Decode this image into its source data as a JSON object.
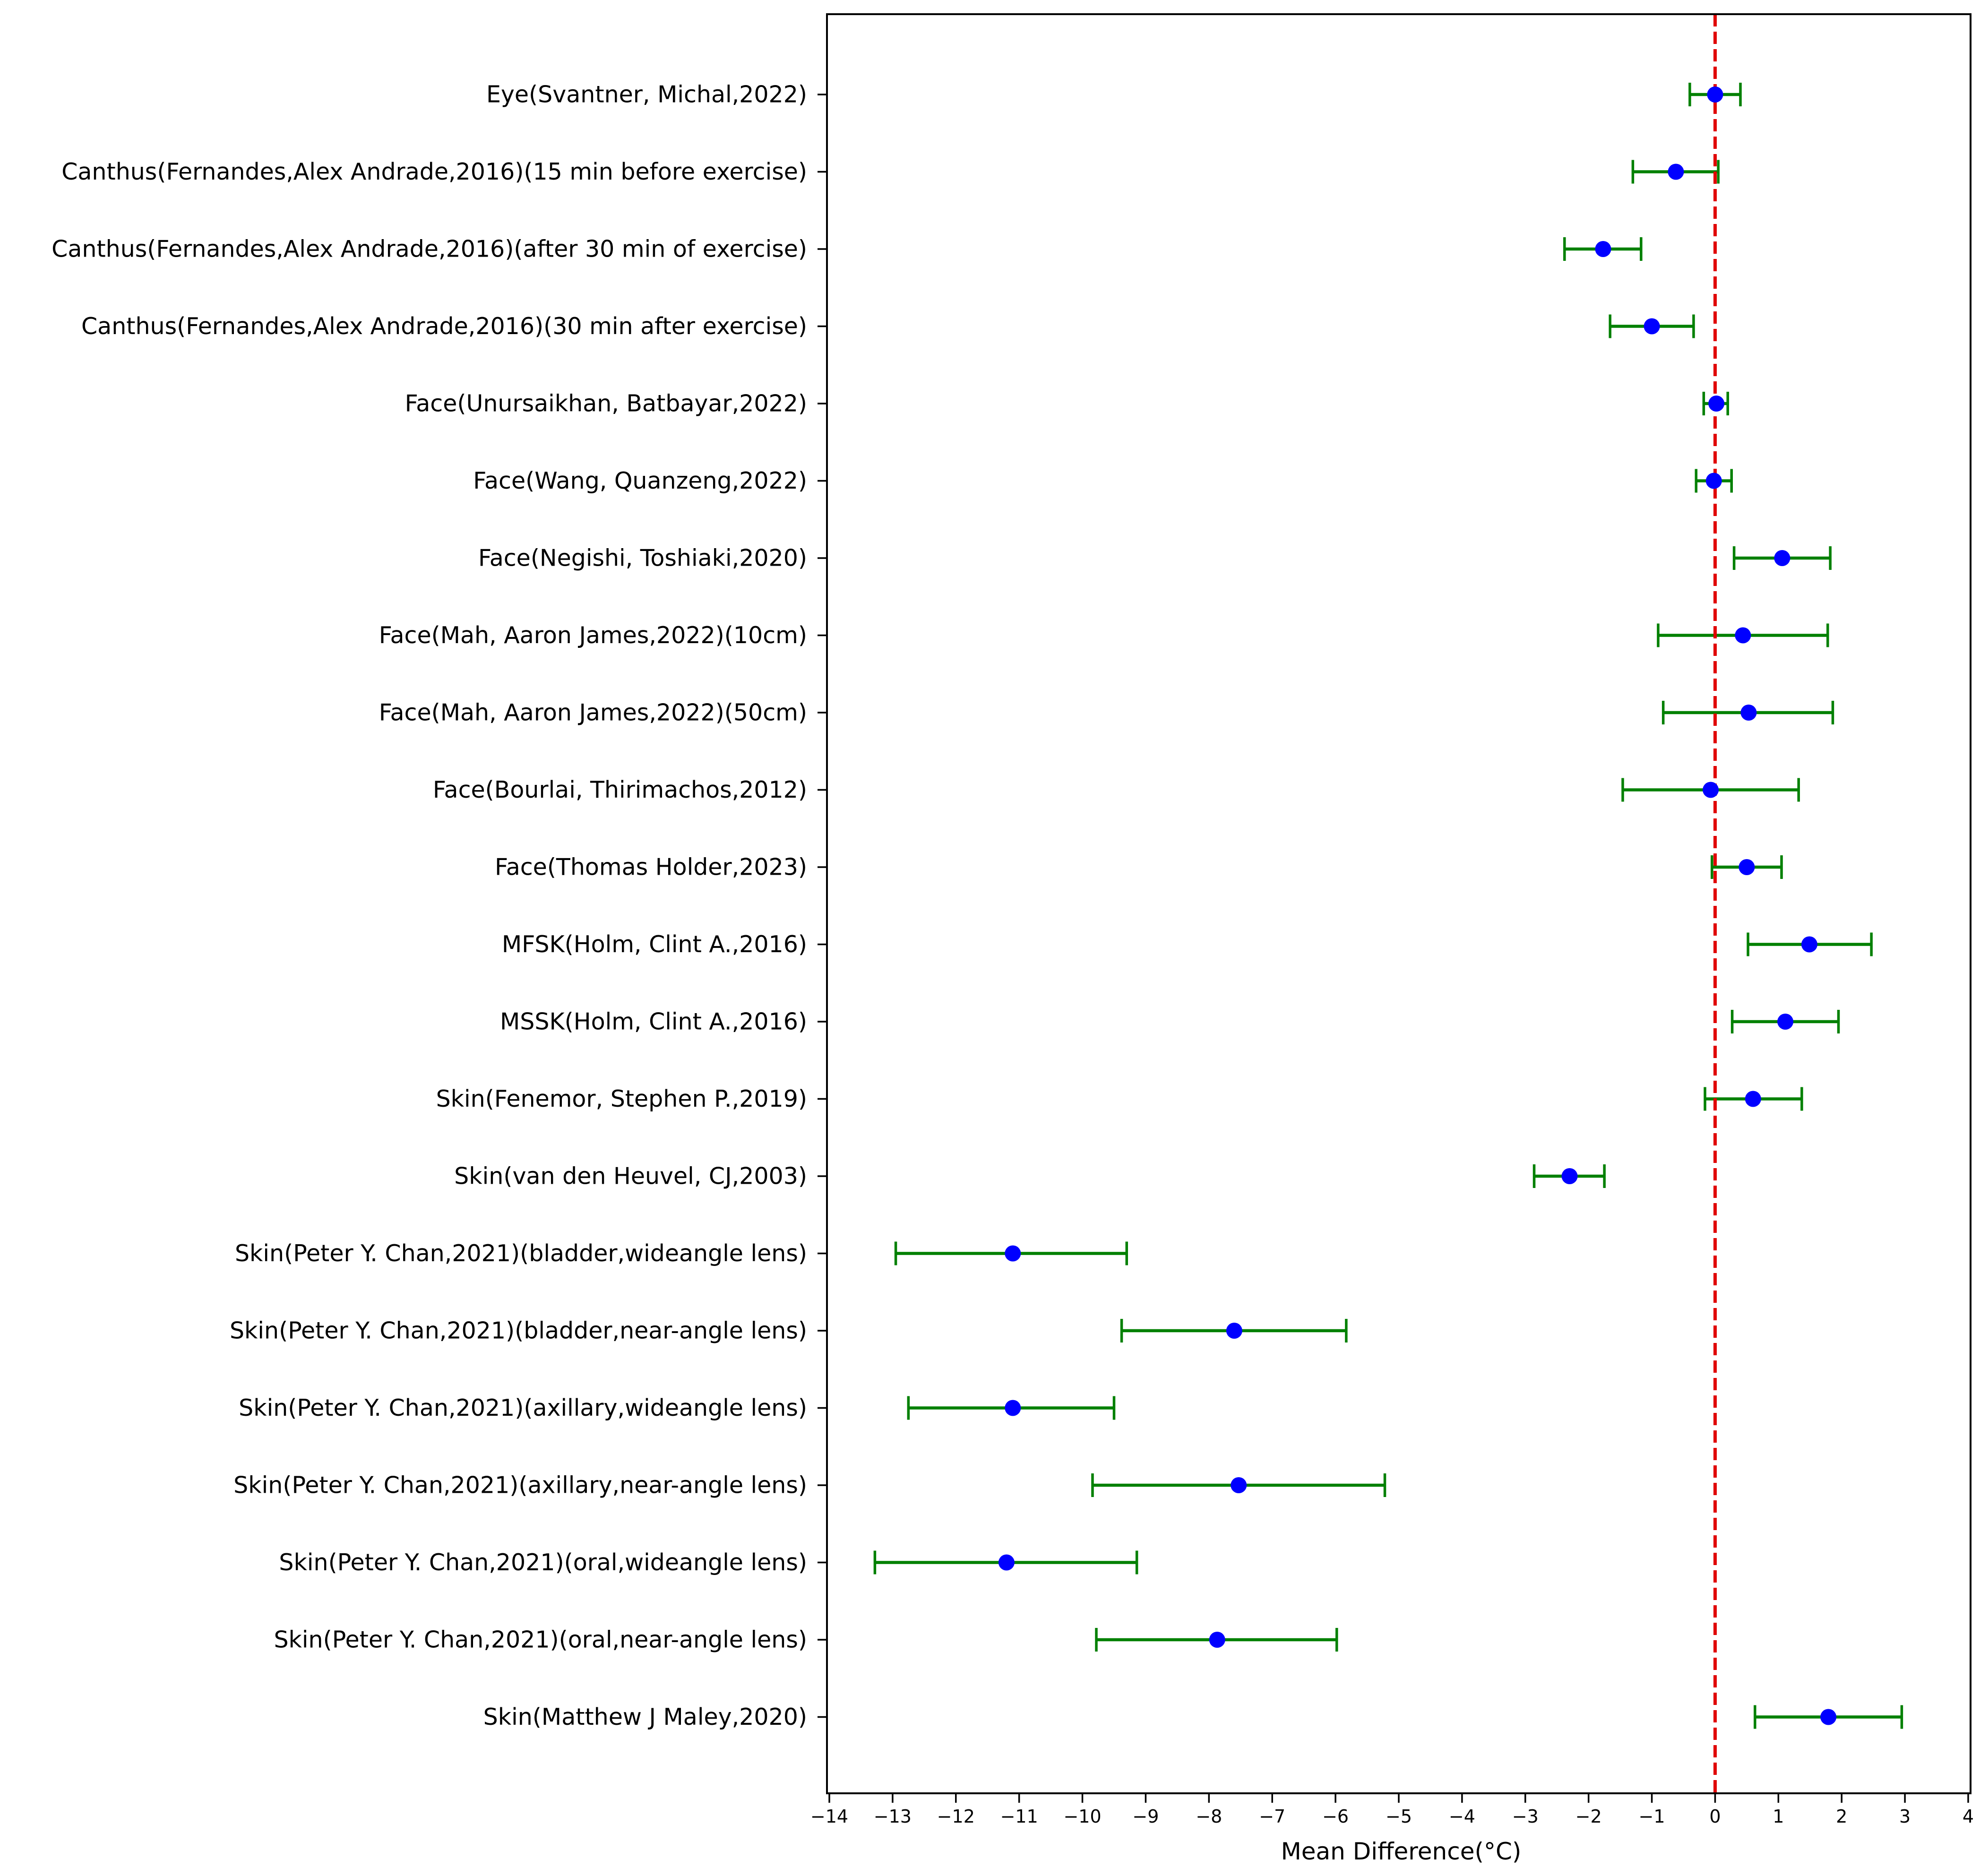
{
  "chart_data": {
    "type": "scatter",
    "subtype": "forest-plot",
    "title": "",
    "xlabel": "Mean Difference(°C)",
    "ylabel": "",
    "xlim": [
      -14,
      4
    ],
    "xticks": [
      -14,
      -13,
      -12,
      -11,
      -10,
      -9,
      -8,
      -7,
      -6,
      -5,
      -4,
      -3,
      -2,
      -1,
      0,
      1,
      2,
      3,
      4
    ],
    "xtick_labels": [
      "−14",
      "−13",
      "−12",
      "−11",
      "−10",
      "−9",
      "−8",
      "−7",
      "−6",
      "−5",
      "−4",
      "−3",
      "−2",
      "−1",
      "0",
      "1",
      "2",
      "3",
      "4"
    ],
    "reference_line": {
      "x": 0,
      "style": "dashed",
      "color": "#e00000"
    },
    "colors": {
      "point": "#0000ff",
      "errorbar": "#008000",
      "reference": "#e00000",
      "axes": "#000000"
    },
    "grid": false,
    "studies": [
      {
        "label": "Eye(Svantner, Michal,2022)",
        "mean": 0.0,
        "lower": -0.4,
        "upper": 0.4
      },
      {
        "label": "Canthus(Fernandes,Alex Andrade,2016)(15 min before exercise)",
        "mean": -0.62,
        "lower": -1.3,
        "upper": 0.05
      },
      {
        "label": "Canthus(Fernandes,Alex Andrade,2016)(after 30 min of exercise)",
        "mean": -1.77,
        "lower": -2.38,
        "upper": -1.17
      },
      {
        "label": "Canthus(Fernandes,Alex Andrade,2016)(30 min after exercise)",
        "mean": -1.0,
        "lower": -1.66,
        "upper": -0.34
      },
      {
        "label": "Face(Unursaikhan, Batbayar,2022)",
        "mean": 0.02,
        "lower": -0.18,
        "upper": 0.2
      },
      {
        "label": "Face(Wang, Quanzeng,2022)",
        "mean": -0.02,
        "lower": -0.3,
        "upper": 0.26
      },
      {
        "label": "Face(Negishi, Toshiaki,2020)",
        "mean": 1.06,
        "lower": 0.3,
        "upper": 1.82
      },
      {
        "label": "Face(Mah, Aaron James,2022)(10cm)",
        "mean": 0.44,
        "lower": -0.9,
        "upper": 1.78
      },
      {
        "label": "Face(Mah, Aaron James,2022)(50cm)",
        "mean": 0.53,
        "lower": -0.82,
        "upper": 1.86
      },
      {
        "label": "Face(Bourlai, Thirimachos,2012)",
        "mean": -0.07,
        "lower": -1.46,
        "upper": 1.32
      },
      {
        "label": "Face(Thomas Holder,2023)",
        "mean": 0.5,
        "lower": -0.05,
        "upper": 1.05
      },
      {
        "label": "MFSK(Holm, Clint A.,2016)",
        "mean": 1.49,
        "lower": 0.52,
        "upper": 2.47
      },
      {
        "label": "MSSK(Holm, Clint A.,2016)",
        "mean": 1.11,
        "lower": 0.27,
        "upper": 1.95
      },
      {
        "label": "Skin(Fenemor, Stephen P.,2019)",
        "mean": 0.6,
        "lower": -0.16,
        "upper": 1.37
      },
      {
        "label": "Skin(van den Heuvel, CJ,2003)",
        "mean": -2.3,
        "lower": -2.86,
        "upper": -1.75
      },
      {
        "label": "Skin(Peter Y. Chan,2021)(bladder,wideangle lens)",
        "mean": -11.1,
        "lower": -12.95,
        "upper": -9.3
      },
      {
        "label": "Skin(Peter Y. Chan,2021)(bladder,near-angle lens)",
        "mean": -7.6,
        "lower": -9.38,
        "upper": -5.83
      },
      {
        "label": "Skin(Peter Y. Chan,2021)(axillary,wideangle lens)",
        "mean": -11.1,
        "lower": -12.75,
        "upper": -9.5
      },
      {
        "label": "Skin(Peter Y. Chan,2021)(axillary,near-angle lens)",
        "mean": -7.53,
        "lower": -9.84,
        "upper": -5.22
      },
      {
        "label": "Skin(Peter Y. Chan,2021)(oral,wideangle lens)",
        "mean": -11.2,
        "lower": -13.28,
        "upper": -9.14
      },
      {
        "label": "Skin(Peter Y. Chan,2021)(oral,near-angle lens)",
        "mean": -7.87,
        "lower": -9.78,
        "upper": -5.98
      },
      {
        "label": "Skin(Matthew J Maley,2020)",
        "mean": 1.79,
        "lower": 0.63,
        "upper": 2.95
      }
    ]
  }
}
